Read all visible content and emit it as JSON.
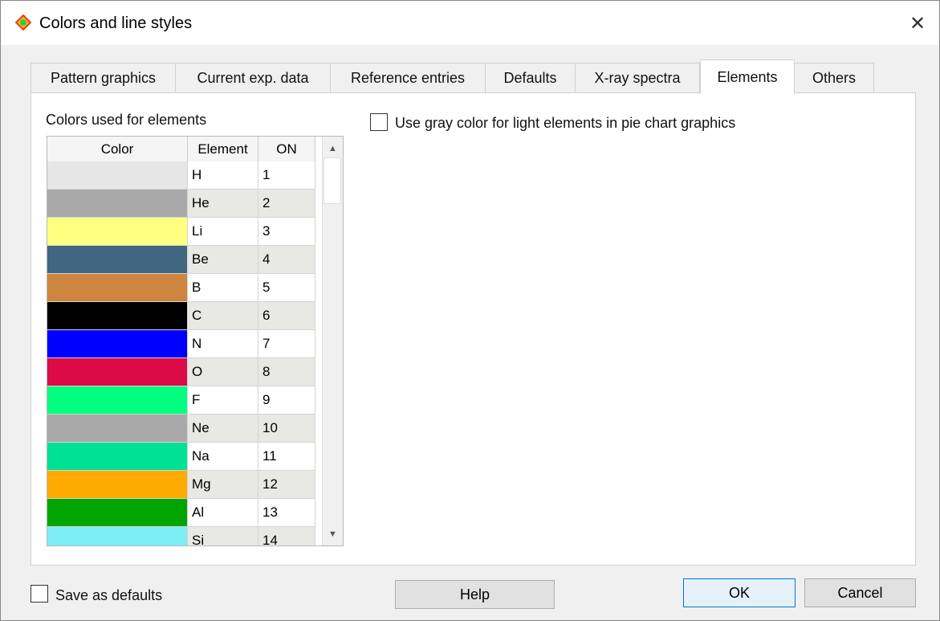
{
  "window": {
    "title": "Colors and line styles",
    "icon": "app-diamond-icon"
  },
  "tabs": [
    {
      "label": "Pattern graphics"
    },
    {
      "label": "Current exp. data"
    },
    {
      "label": "Reference entries"
    },
    {
      "label": "Defaults"
    },
    {
      "label": "X-ray spectra"
    },
    {
      "label": "Elements",
      "active": true
    },
    {
      "label": "Others"
    }
  ],
  "elements_tab": {
    "group_label": "Colors used for elements",
    "gray_checkbox": {
      "label": "Use gray color for light elements in pie chart graphics",
      "checked": false
    },
    "table": {
      "columns": [
        "Color",
        "Element",
        "ON"
      ],
      "rows": [
        {
          "color": "#e6e6e6",
          "element": "H",
          "on": "1"
        },
        {
          "color": "#a9a9a9",
          "element": "He",
          "on": "2"
        },
        {
          "color": "#ffff80",
          "element": "Li",
          "on": "3"
        },
        {
          "color": "#406680",
          "element": "Be",
          "on": "4"
        },
        {
          "color": "#cd853f",
          "element": "B",
          "on": "5"
        },
        {
          "color": "#000000",
          "element": "C",
          "on": "6"
        },
        {
          "color": "#0000ff",
          "element": "N",
          "on": "7"
        },
        {
          "color": "#dc0a46",
          "element": "O",
          "on": "8"
        },
        {
          "color": "#00ff80",
          "element": "F",
          "on": "9"
        },
        {
          "color": "#a9a9a9",
          "element": "Ne",
          "on": "10"
        },
        {
          "color": "#00e196",
          "element": "Na",
          "on": "11"
        },
        {
          "color": "#ffaa00",
          "element": "Mg",
          "on": "12"
        },
        {
          "color": "#00a500",
          "element": "Al",
          "on": "13"
        },
        {
          "color": "#7deef3",
          "element": "Si",
          "on": "14"
        }
      ]
    }
  },
  "footer": {
    "save_defaults": {
      "label": "Save as defaults",
      "checked": false
    },
    "help": "Help",
    "ok": "OK",
    "cancel": "Cancel"
  }
}
